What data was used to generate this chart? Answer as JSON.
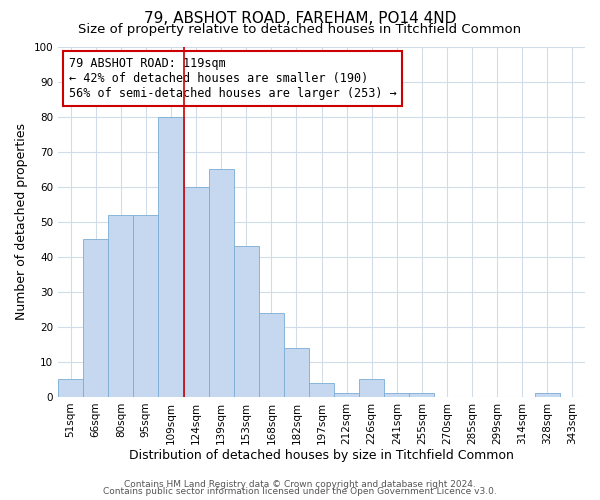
{
  "title": "79, ABSHOT ROAD, FAREHAM, PO14 4ND",
  "subtitle": "Size of property relative to detached houses in Titchfield Common",
  "xlabel": "Distribution of detached houses by size in Titchfield Common",
  "ylabel": "Number of detached properties",
  "categories": [
    "51sqm",
    "66sqm",
    "80sqm",
    "95sqm",
    "109sqm",
    "124sqm",
    "139sqm",
    "153sqm",
    "168sqm",
    "182sqm",
    "197sqm",
    "212sqm",
    "226sqm",
    "241sqm",
    "255sqm",
    "270sqm",
    "285sqm",
    "299sqm",
    "314sqm",
    "328sqm",
    "343sqm"
  ],
  "values": [
    5,
    45,
    52,
    52,
    80,
    60,
    65,
    43,
    24,
    14,
    4,
    1,
    5,
    1,
    1,
    0,
    0,
    0,
    0,
    1,
    0
  ],
  "bar_color": "#c5d8f0",
  "bar_edge_color": "#7aadd4",
  "vline_x_index": 5,
  "vline_color": "#cc0000",
  "annotation_text": "79 ABSHOT ROAD: 119sqm\n← 42% of detached houses are smaller (190)\n56% of semi-detached houses are larger (253) →",
  "annotation_box_color": "#ffffff",
  "annotation_box_edge": "#cc0000",
  "ylim": [
    0,
    100
  ],
  "yticks": [
    0,
    10,
    20,
    30,
    40,
    50,
    60,
    70,
    80,
    90,
    100
  ],
  "footer1": "Contains HM Land Registry data © Crown copyright and database right 2024.",
  "footer2": "Contains public sector information licensed under the Open Government Licence v3.0.",
  "background_color": "#ffffff",
  "grid_color": "#d0dce8",
  "title_fontsize": 11,
  "subtitle_fontsize": 9.5,
  "axis_label_fontsize": 9,
  "tick_fontsize": 7.5,
  "footer_fontsize": 6.5,
  "annotation_fontsize": 8.5
}
